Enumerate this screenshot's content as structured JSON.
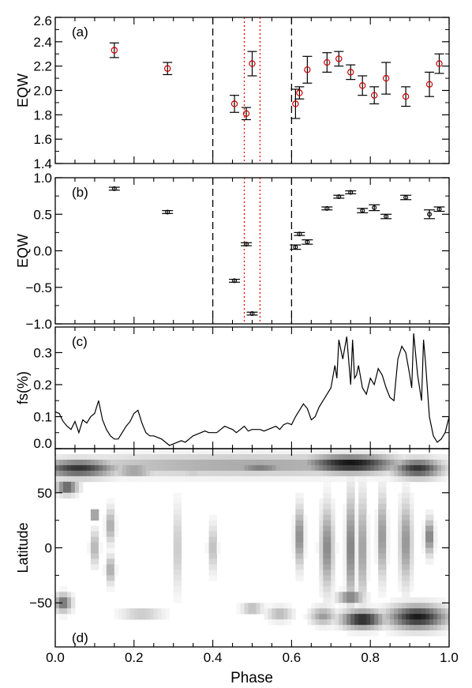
{
  "figure": {
    "xlabel": "Phase",
    "x_ticks": [
      "0.0",
      "0.2",
      "0.4",
      "0.6",
      "0.8",
      "1.0"
    ],
    "colors": {
      "axis": "#000000",
      "marker_a": "#cc0000",
      "dotted_lines": "#ff0000",
      "dashed_lines": "#000000"
    }
  },
  "chart_data": [
    {
      "id": "a",
      "panel_label": "(a)",
      "type": "scatter",
      "ylabel": "EQW",
      "xlim": [
        0.0,
        1.0
      ],
      "ylim": [
        1.4,
        2.6
      ],
      "y_ticks": [
        "1.4",
        "1.6",
        "1.8",
        "2.0",
        "2.2",
        "2.4",
        "2.6"
      ],
      "dashed_vlines": [
        0.4,
        0.6
      ],
      "dotted_vlines": [
        0.48,
        0.52
      ],
      "points": [
        {
          "x": 0.15,
          "y": 2.33,
          "err": 0.06
        },
        {
          "x": 0.285,
          "y": 2.18,
          "err": 0.05
        },
        {
          "x": 0.455,
          "y": 1.89,
          "err": 0.07
        },
        {
          "x": 0.485,
          "y": 1.81,
          "err": 0.05
        },
        {
          "x": 0.5,
          "y": 2.22,
          "err": 0.1
        },
        {
          "x": 0.61,
          "y": 1.89,
          "err": 0.12
        },
        {
          "x": 0.62,
          "y": 1.98,
          "err": 0.05
        },
        {
          "x": 0.64,
          "y": 2.17,
          "err": 0.11
        },
        {
          "x": 0.69,
          "y": 2.23,
          "err": 0.08
        },
        {
          "x": 0.72,
          "y": 2.26,
          "err": 0.06
        },
        {
          "x": 0.75,
          "y": 2.15,
          "err": 0.06
        },
        {
          "x": 0.78,
          "y": 2.04,
          "err": 0.08
        },
        {
          "x": 0.81,
          "y": 1.96,
          "err": 0.07
        },
        {
          "x": 0.84,
          "y": 2.1,
          "err": 0.13
        },
        {
          "x": 0.89,
          "y": 1.95,
          "err": 0.08
        },
        {
          "x": 0.95,
          "y": 2.05,
          "err": 0.1
        },
        {
          "x": 0.975,
          "y": 2.22,
          "err": 0.08
        }
      ]
    },
    {
      "id": "b",
      "panel_label": "(b)",
      "type": "scatter",
      "ylabel": "EQW",
      "xlim": [
        0.0,
        1.0
      ],
      "ylim": [
        -1.0,
        1.0
      ],
      "y_ticks": [
        "−1.0",
        "−0.5",
        "0.0",
        "0.5",
        "1.0"
      ],
      "dashed_vlines": [
        0.4,
        0.6
      ],
      "dotted_vlines": [
        0.48,
        0.52
      ],
      "points": [
        {
          "x": 0.15,
          "y": 0.85,
          "err": 0.02
        },
        {
          "x": 0.285,
          "y": 0.53,
          "err": 0.02
        },
        {
          "x": 0.455,
          "y": -0.41,
          "err": 0.02
        },
        {
          "x": 0.485,
          "y": 0.09,
          "err": 0.02
        },
        {
          "x": 0.5,
          "y": -0.86,
          "err": 0.02
        },
        {
          "x": 0.61,
          "y": 0.05,
          "err": 0.03
        },
        {
          "x": 0.62,
          "y": 0.23,
          "err": 0.02
        },
        {
          "x": 0.64,
          "y": 0.12,
          "err": 0.03
        },
        {
          "x": 0.69,
          "y": 0.58,
          "err": 0.02
        },
        {
          "x": 0.72,
          "y": 0.74,
          "err": 0.02
        },
        {
          "x": 0.75,
          "y": 0.8,
          "err": 0.02
        },
        {
          "x": 0.78,
          "y": 0.55,
          "err": 0.03
        },
        {
          "x": 0.81,
          "y": 0.59,
          "err": 0.04
        },
        {
          "x": 0.84,
          "y": 0.47,
          "err": 0.03
        },
        {
          "x": 0.89,
          "y": 0.73,
          "err": 0.03
        },
        {
          "x": 0.95,
          "y": 0.5,
          "err": 0.06
        },
        {
          "x": 0.975,
          "y": 0.57,
          "err": 0.03
        }
      ]
    },
    {
      "id": "c",
      "panel_label": "(c)",
      "type": "line",
      "ylabel": "fs(%)",
      "xlim": [
        0.0,
        1.0
      ],
      "ylim": [
        0.0,
        0.38
      ],
      "y_ticks": [
        "0.0",
        "0.1",
        "0.2",
        "0.3"
      ],
      "x": [
        0.0,
        0.01,
        0.02,
        0.03,
        0.04,
        0.05,
        0.06,
        0.07,
        0.08,
        0.09,
        0.1,
        0.11,
        0.12,
        0.13,
        0.14,
        0.15,
        0.16,
        0.17,
        0.18,
        0.19,
        0.2,
        0.21,
        0.22,
        0.23,
        0.24,
        0.25,
        0.26,
        0.27,
        0.28,
        0.29,
        0.3,
        0.31,
        0.32,
        0.33,
        0.34,
        0.35,
        0.36,
        0.37,
        0.38,
        0.39,
        0.4,
        0.41,
        0.42,
        0.43,
        0.44,
        0.45,
        0.46,
        0.47,
        0.48,
        0.49,
        0.5,
        0.51,
        0.52,
        0.53,
        0.54,
        0.55,
        0.56,
        0.57,
        0.58,
        0.59,
        0.6,
        0.61,
        0.62,
        0.63,
        0.64,
        0.65,
        0.66,
        0.67,
        0.68,
        0.69,
        0.7,
        0.71,
        0.715,
        0.72,
        0.73,
        0.74,
        0.75,
        0.755,
        0.76,
        0.765,
        0.77,
        0.78,
        0.79,
        0.8,
        0.81,
        0.82,
        0.83,
        0.84,
        0.85,
        0.86,
        0.87,
        0.88,
        0.89,
        0.9,
        0.905,
        0.91,
        0.92,
        0.93,
        0.935,
        0.94,
        0.95,
        0.96,
        0.97,
        0.98,
        0.99,
        1.0
      ],
      "y": [
        0.115,
        0.11,
        0.085,
        0.07,
        0.06,
        0.085,
        0.05,
        0.09,
        0.08,
        0.1,
        0.11,
        0.15,
        0.09,
        0.06,
        0.04,
        0.03,
        0.03,
        0.05,
        0.07,
        0.085,
        0.11,
        0.12,
        0.08,
        0.05,
        0.04,
        0.04,
        0.035,
        0.03,
        0.02,
        0.01,
        0.015,
        0.02,
        0.025,
        0.02,
        0.03,
        0.04,
        0.045,
        0.05,
        0.055,
        0.05,
        0.05,
        0.05,
        0.06,
        0.07,
        0.065,
        0.06,
        0.05,
        0.06,
        0.07,
        0.055,
        0.06,
        0.06,
        0.06,
        0.055,
        0.06,
        0.065,
        0.07,
        0.06,
        0.075,
        0.08,
        0.075,
        0.1,
        0.12,
        0.14,
        0.125,
        0.09,
        0.1,
        0.13,
        0.15,
        0.17,
        0.19,
        0.26,
        0.22,
        0.34,
        0.28,
        0.35,
        0.2,
        0.34,
        0.22,
        0.23,
        0.26,
        0.19,
        0.17,
        0.22,
        0.2,
        0.25,
        0.23,
        0.19,
        0.16,
        0.15,
        0.28,
        0.32,
        0.3,
        0.23,
        0.19,
        0.36,
        0.23,
        0.15,
        0.34,
        0.27,
        0.1,
        0.04,
        0.02,
        0.03,
        0.05,
        0.1
      ]
    },
    {
      "id": "d",
      "panel_label": "(d)",
      "type": "heatmap",
      "ylabel": "Latitude",
      "xlim": [
        0.0,
        1.0
      ],
      "ylim": [
        -90,
        90
      ],
      "y_ticks": [
        "−50",
        "0",
        "50"
      ],
      "colormap": "white-to-black",
      "spots": [
        {
          "x": 0.5,
          "lat": 75,
          "w": 1.0,
          "h": 18,
          "v": 0.35
        },
        {
          "x": 0.06,
          "lat": 72,
          "w": 0.18,
          "h": 15,
          "v": 0.8
        },
        {
          "x": 0.2,
          "lat": 70,
          "w": 0.1,
          "h": 10,
          "v": 0.45
        },
        {
          "x": 0.35,
          "lat": 70,
          "w": 0.08,
          "h": 10,
          "v": 0.25
        },
        {
          "x": 0.52,
          "lat": 74,
          "w": 0.14,
          "h": 10,
          "v": 0.55
        },
        {
          "x": 0.75,
          "lat": 76,
          "w": 0.22,
          "h": 15,
          "v": 0.95
        },
        {
          "x": 0.92,
          "lat": 72,
          "w": 0.12,
          "h": 16,
          "v": 0.8
        },
        {
          "x": 0.03,
          "lat": 55,
          "w": 0.05,
          "h": 12,
          "v": 0.7
        },
        {
          "x": 0.1,
          "lat": 30,
          "w": 0.015,
          "h": 8,
          "v": 0.8
        },
        {
          "x": 0.14,
          "lat": 20,
          "w": 0.02,
          "h": 30,
          "v": 0.4
        },
        {
          "x": 0.1,
          "lat": 0,
          "w": 0.02,
          "h": 30,
          "v": 0.35
        },
        {
          "x": 0.14,
          "lat": -20,
          "w": 0.02,
          "h": 24,
          "v": 0.4
        },
        {
          "x": 0.31,
          "lat": 0,
          "w": 0.02,
          "h": 70,
          "v": 0.25
        },
        {
          "x": 0.4,
          "lat": 0,
          "w": 0.02,
          "h": 40,
          "v": 0.3
        },
        {
          "x": 0.62,
          "lat": 10,
          "w": 0.02,
          "h": 50,
          "v": 0.55
        },
        {
          "x": 0.69,
          "lat": 0,
          "w": 0.03,
          "h": 70,
          "v": 0.5
        },
        {
          "x": 0.75,
          "lat": 0,
          "w": 0.02,
          "h": 90,
          "v": 0.6
        },
        {
          "x": 0.78,
          "lat": 0,
          "w": 0.02,
          "h": 90,
          "v": 0.45
        },
        {
          "x": 0.83,
          "lat": 10,
          "w": 0.02,
          "h": 70,
          "v": 0.5
        },
        {
          "x": 0.89,
          "lat": 5,
          "w": 0.03,
          "h": 70,
          "v": 0.45
        },
        {
          "x": 0.95,
          "lat": 10,
          "w": 0.02,
          "h": 30,
          "v": 0.6
        },
        {
          "x": 0.02,
          "lat": -50,
          "w": 0.04,
          "h": 15,
          "v": 0.6
        },
        {
          "x": 0.22,
          "lat": -60,
          "w": 0.1,
          "h": 10,
          "v": 0.25
        },
        {
          "x": 0.5,
          "lat": -55,
          "w": 0.05,
          "h": 8,
          "v": 0.35
        },
        {
          "x": 0.57,
          "lat": -60,
          "w": 0.06,
          "h": 12,
          "v": 0.3
        },
        {
          "x": 0.68,
          "lat": -62,
          "w": 0.06,
          "h": 15,
          "v": 0.4
        },
        {
          "x": 0.78,
          "lat": -65,
          "w": 0.1,
          "h": 15,
          "v": 0.9
        },
        {
          "x": 0.92,
          "lat": -63,
          "w": 0.14,
          "h": 20,
          "v": 0.9
        },
        {
          "x": 0.75,
          "lat": -45,
          "w": 0.06,
          "h": 10,
          "v": 0.6
        }
      ]
    }
  ]
}
